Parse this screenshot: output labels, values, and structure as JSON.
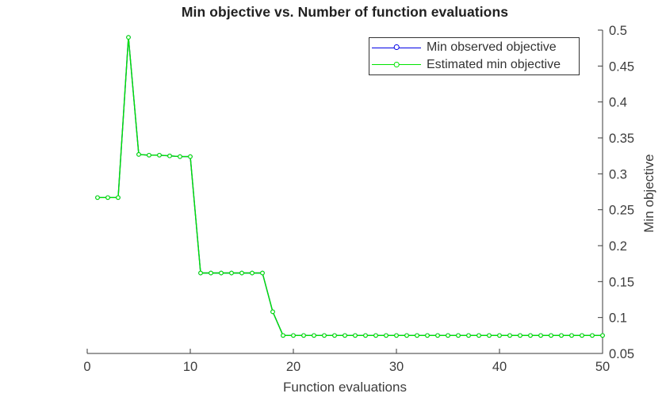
{
  "figure": {
    "background": "#ffffff"
  },
  "chart_data": {
    "type": "line",
    "title": "Min objective vs. Number of function evaluations",
    "xlabel": "Function evaluations",
    "ylabel": "Min objective",
    "xlim": [
      0,
      50
    ],
    "ylim": [
      0.05,
      0.5
    ],
    "grid": false,
    "y_axis_location": "right",
    "axis_color": "#3a3a3a",
    "tick_label_color": "#3d3d3d",
    "x_ticks": {
      "values": [
        0,
        10,
        20,
        30,
        40,
        50
      ],
      "labels": [
        "0",
        "10",
        "20",
        "30",
        "40",
        "50"
      ]
    },
    "y_ticks": {
      "values": [
        0.05,
        0.1,
        0.15,
        0.2,
        0.25,
        0.3,
        0.35,
        0.4,
        0.45,
        0.5
      ],
      "labels": [
        "0.05",
        "0.1",
        "0.15",
        "0.2",
        "0.25",
        "0.3",
        "0.35",
        "0.4",
        "0.45",
        "0.5"
      ]
    },
    "legend": {
      "position": "top-right",
      "entries": [
        {
          "label": "Min observed objective",
          "color": "#0000e6"
        },
        {
          "label": "Estimated min objective",
          "color": "#00e400"
        }
      ]
    },
    "x": [
      1,
      2,
      3,
      4,
      5,
      6,
      7,
      8,
      9,
      10,
      11,
      12,
      13,
      14,
      15,
      16,
      17,
      18,
      19,
      20,
      21,
      22,
      23,
      24,
      25,
      26,
      27,
      28,
      29,
      30,
      31,
      32,
      33,
      34,
      35,
      36,
      37,
      38,
      39,
      40,
      41,
      42,
      43,
      44,
      45,
      46,
      47,
      48,
      49,
      50
    ],
    "series": [
      {
        "name": "Min observed objective",
        "color": "#0000e6",
        "marker": "circle",
        "values": [
          0.267,
          0.267,
          0.267,
          0.49,
          0.327,
          0.326,
          0.326,
          0.325,
          0.324,
          0.324,
          0.162,
          0.162,
          0.162,
          0.162,
          0.162,
          0.162,
          0.162,
          0.108,
          0.075,
          0.075,
          0.075,
          0.075,
          0.075,
          0.075,
          0.075,
          0.075,
          0.075,
          0.075,
          0.075,
          0.075,
          0.075,
          0.075,
          0.075,
          0.075,
          0.075,
          0.075,
          0.075,
          0.075,
          0.075,
          0.075,
          0.075,
          0.075,
          0.075,
          0.075,
          0.075,
          0.075,
          0.075,
          0.075,
          0.075,
          0.075
        ]
      },
      {
        "name": "Estimated min objective",
        "color": "#00e400",
        "marker": "circle",
        "values": [
          0.267,
          0.267,
          0.267,
          0.49,
          0.327,
          0.326,
          0.326,
          0.325,
          0.324,
          0.324,
          0.162,
          0.162,
          0.162,
          0.162,
          0.162,
          0.162,
          0.162,
          0.108,
          0.075,
          0.075,
          0.075,
          0.075,
          0.075,
          0.075,
          0.075,
          0.075,
          0.075,
          0.075,
          0.075,
          0.075,
          0.075,
          0.075,
          0.075,
          0.075,
          0.075,
          0.075,
          0.075,
          0.075,
          0.075,
          0.075,
          0.075,
          0.075,
          0.075,
          0.075,
          0.075,
          0.075,
          0.075,
          0.075,
          0.075,
          0.075
        ]
      }
    ]
  }
}
